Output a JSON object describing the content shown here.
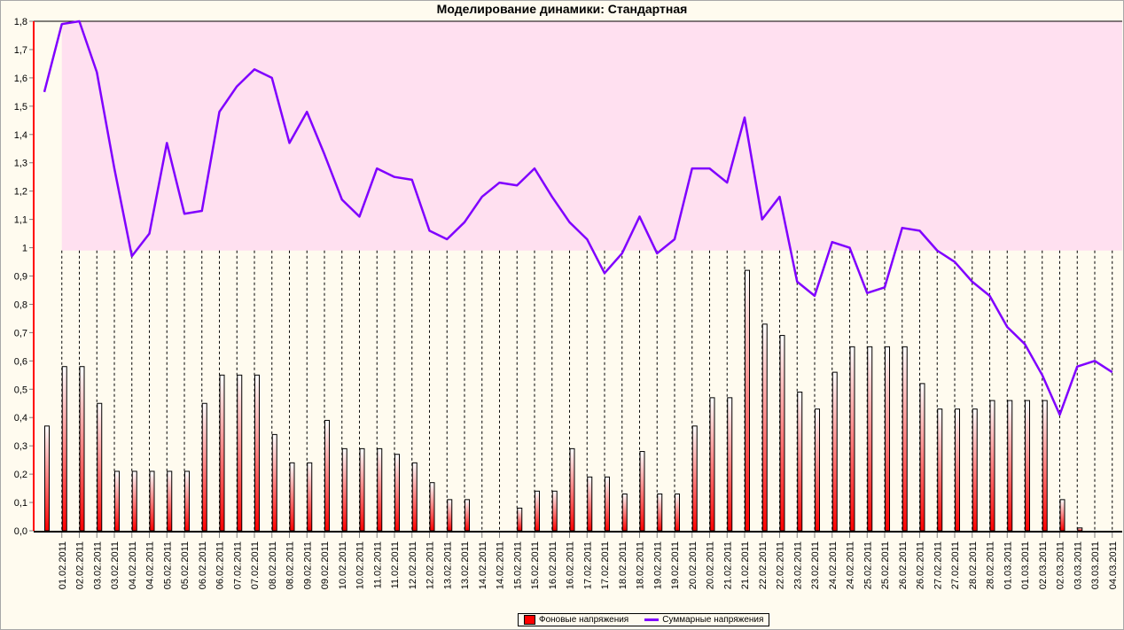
{
  "chart_data": {
    "type": "bar+line",
    "title": "Моделирование динамики: Стандартная",
    "ylim": [
      0,
      1.8
    ],
    "yticks": [
      "0,0",
      "0,1",
      "0,2",
      "0,3",
      "0,4",
      "0,5",
      "0,6",
      "0,7",
      "0,8",
      "0,9",
      "1",
      "1,1",
      "1,2",
      "1,3",
      "1,4",
      "1,5",
      "1,6",
      "1,7",
      "1,8"
    ],
    "threshold_band": [
      0.99,
      1.8
    ],
    "categories": [
      "",
      "01.02.2011",
      "02.02.2011",
      "03.02.2011",
      "03.02.2011",
      "04.02.2011",
      "04.02.2011",
      "05.02.2011",
      "05.02.2011",
      "06.02.2011",
      "06.02.2011",
      "07.02.2011",
      "07.02.2011",
      "08.02.2011",
      "08.02.2011",
      "09.02.2011",
      "09.02.2011",
      "10.02.2011",
      "10.02.2011",
      "11.02.2011",
      "11.02.2011",
      "12.02.2011",
      "12.02.2011",
      "13.02.2011",
      "13.02.2011",
      "14.02.2011",
      "14.02.2011",
      "15.02.2011",
      "15.02.2011",
      "16.02.2011",
      "16.02.2011",
      "17.02.2011",
      "17.02.2011",
      "18.02.2011",
      "18.02.2011",
      "19.02.2011",
      "19.02.2011",
      "20.02.2011",
      "20.02.2011",
      "21.02.2011",
      "21.02.2011",
      "22.02.2011",
      "22.02.2011",
      "23.02.2011",
      "23.02.2011",
      "24.02.2011",
      "24.02.2011",
      "25.02.2011",
      "25.02.2011",
      "26.02.2011",
      "26.02.2011",
      "27.02.2011",
      "27.02.2011",
      "28.02.2011",
      "28.02.2011",
      "01.03.2011",
      "01.03.2011",
      "02.03.2011",
      "02.03.2011",
      "03.03.2011",
      "03.03.2011",
      "04.03.2011"
    ],
    "series": [
      {
        "name": "Фоновые напряжения",
        "type": "bar",
        "color": "#ff0000",
        "values": [
          0.37,
          0.58,
          0.58,
          0.45,
          0.21,
          0.21,
          0.21,
          0.21,
          0.21,
          0.45,
          0.55,
          0.55,
          0.55,
          0.34,
          0.24,
          0.24,
          0.39,
          0.29,
          0.29,
          0.29,
          0.27,
          0.24,
          0.17,
          0.11,
          0.11,
          0,
          0,
          0.08,
          0.14,
          0.14,
          0.29,
          0.19,
          0.19,
          0.13,
          0.28,
          0.13,
          0.13,
          0.37,
          0.47,
          0.47,
          0.92,
          0.73,
          0.69,
          0.49,
          0.43,
          0.56,
          0.65,
          0.65,
          0.65,
          0.65,
          0.52,
          0.43,
          0.43,
          0.43,
          0.46,
          0.46,
          0.46,
          0.46,
          0.11,
          0.01,
          0,
          0
        ]
      },
      {
        "name": "Суммарные напряжения",
        "type": "line",
        "color": "#8000ff",
        "values": [
          1.55,
          1.79,
          1.8,
          1.62,
          1.28,
          0.97,
          1.05,
          1.37,
          1.12,
          1.13,
          1.48,
          1.57,
          1.63,
          1.6,
          1.37,
          1.48,
          1.33,
          1.17,
          1.11,
          1.28,
          1.25,
          1.24,
          1.06,
          1.03,
          1.09,
          1.18,
          1.23,
          1.22,
          1.28,
          1.18,
          1.09,
          1.03,
          0.91,
          0.98,
          1.11,
          0.98,
          1.03,
          1.28,
          1.28,
          1.23,
          1.46,
          1.1,
          1.18,
          0.88,
          0.83,
          1.02,
          1.0,
          0.84,
          0.86,
          1.07,
          1.06,
          0.99,
          0.95,
          0.88,
          0.83,
          0.72,
          0.66,
          0.55,
          0.41,
          0.58,
          0.6,
          0.56
        ]
      }
    ],
    "legend": "bottom"
  }
}
